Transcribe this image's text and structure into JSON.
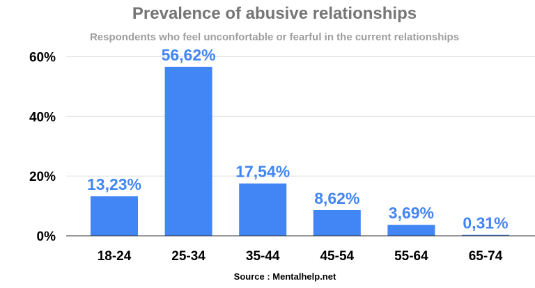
{
  "chart_data": {
    "type": "bar",
    "title": "Prevalence of abusive relationships",
    "subtitle": "Respondents who feel unconfortable or fearful in the current relationships",
    "categories": [
      "18-24",
      "25-34",
      "35-44",
      "45-54",
      "55-64",
      "65-74"
    ],
    "values": [
      13.23,
      56.62,
      17.54,
      8.62,
      3.69,
      0.31
    ],
    "data_labels": [
      "13,23%",
      "56,62%",
      "17,54%",
      "8,62%",
      "3,69%",
      "0,31%"
    ],
    "y_ticks": [
      0,
      20,
      40,
      60
    ],
    "y_tick_labels": [
      "0%",
      "20%",
      "40%",
      "60%"
    ],
    "ylim": [
      0,
      65
    ],
    "grid": true,
    "legend": "none",
    "colors": {
      "bar": "#4285f4",
      "data_label": "#4285f4",
      "grid": "#e0e0e0",
      "axis": "#333333"
    },
    "source": "Source : Mentalhelp.net"
  }
}
